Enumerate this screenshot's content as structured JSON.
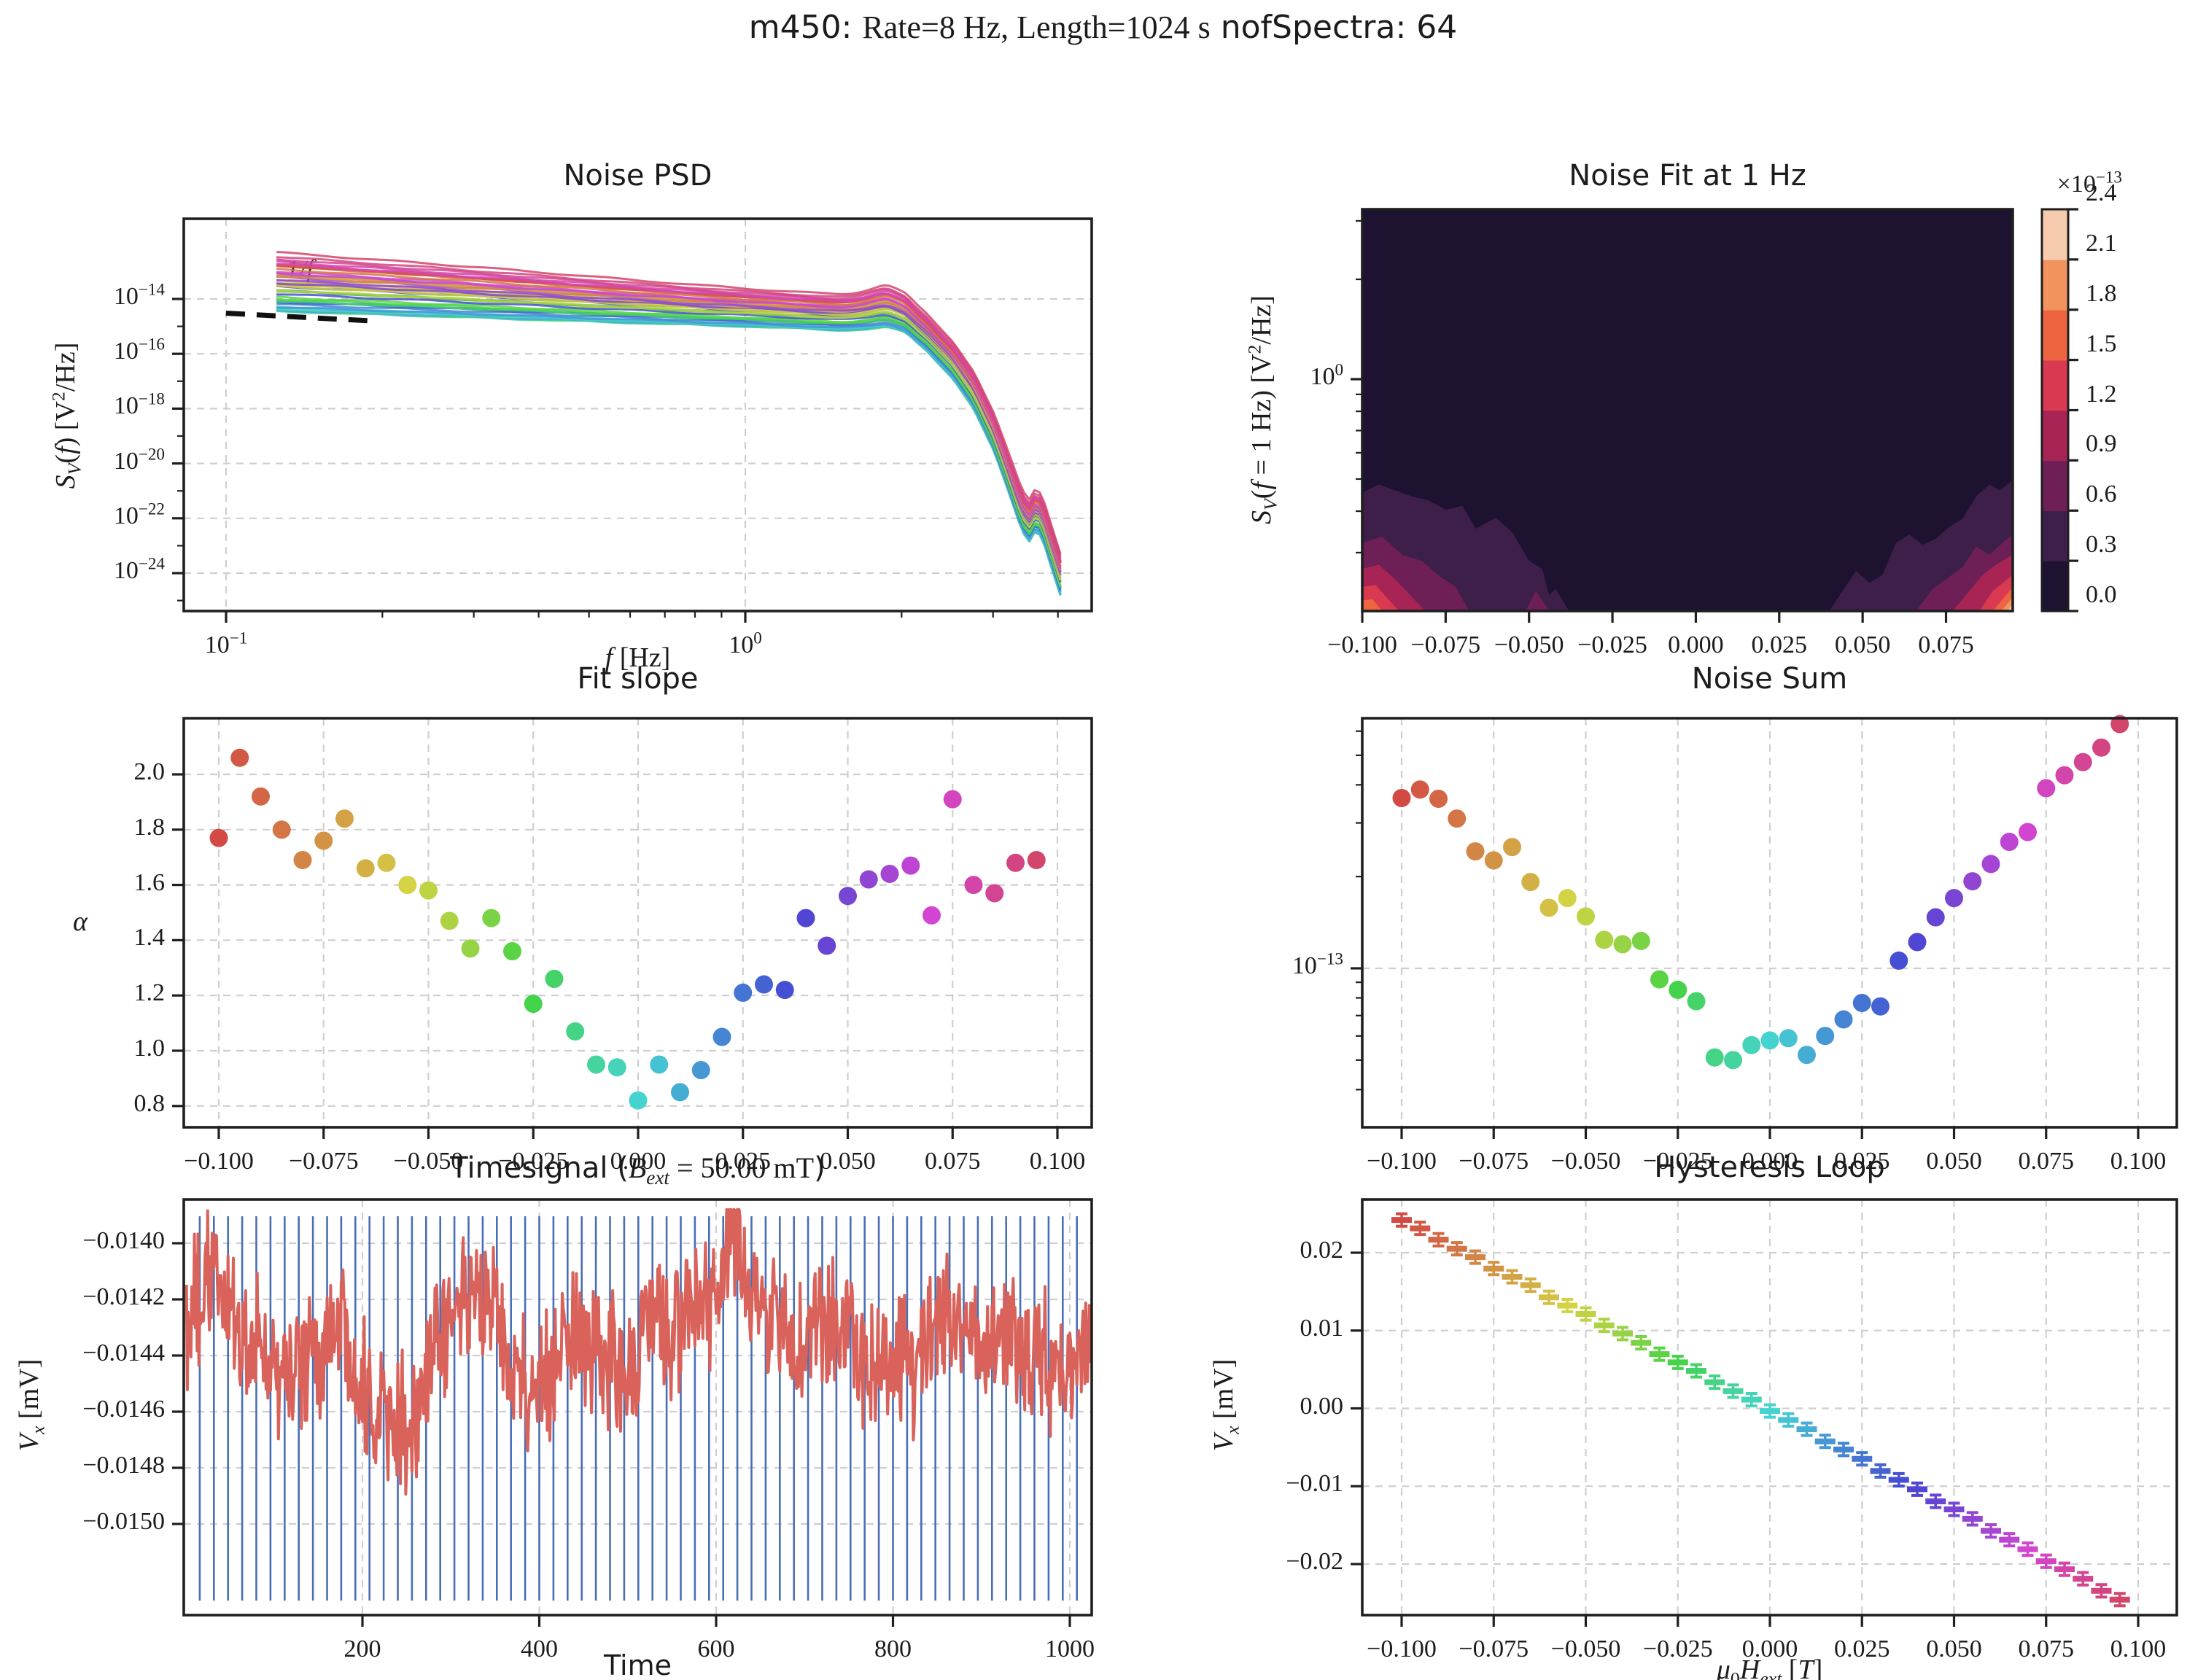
{
  "figure": {
    "suptitle": [
      [
        "m450:  ",
        "s"
      ],
      [
        "Rate",
        "n"
      ],
      [
        "=",
        "n"
      ],
      [
        "8 Hz",
        "n"
      ],
      [
        ", ",
        "n"
      ],
      [
        "Length",
        "n"
      ],
      [
        "=",
        "n"
      ],
      [
        "1024 s",
        "n"
      ],
      [
        "  ",
        "s"
      ],
      [
        "nofSpectra:  64",
        "s"
      ]
    ]
  },
  "style": {
    "spine_color": "#1f1f1f",
    "grid_color": "#cfcfcf",
    "text_color": "#1c1c1c",
    "psd_ref_line_color": "#111111",
    "timesignal_line_color": "#d9625b",
    "segment_line_color": "#4a6fb5",
    "contour_level_colors": [
      "#1d1230",
      "#3e1f4a",
      "#6e2056",
      "#a82455",
      "#d93a51",
      "#ec6440",
      "#f2935e",
      "#f7ccae"
    ],
    "field_hue_anchors": [
      [
        0,
        2
      ],
      [
        0.1,
        26
      ],
      [
        0.2,
        50
      ],
      [
        0.3,
        82
      ],
      [
        0.42,
        140
      ],
      [
        0.5,
        174
      ],
      [
        0.58,
        202
      ],
      [
        0.68,
        232
      ],
      [
        0.78,
        266
      ],
      [
        0.87,
        300
      ],
      [
        1,
        344
      ]
    ],
    "field_saturation": 62,
    "field_lightness": 55
  },
  "field_T": [
    -0.1,
    -0.095,
    -0.09,
    -0.085,
    -0.08,
    -0.075,
    -0.07,
    -0.065,
    -0.06,
    -0.055,
    -0.05,
    -0.045,
    -0.04,
    -0.035,
    -0.03,
    -0.025,
    -0.02,
    -0.015,
    -0.01,
    -0.005,
    0.0,
    0.005,
    0.01,
    0.015,
    0.02,
    0.025,
    0.03,
    0.035,
    0.04,
    0.045,
    0.05,
    0.055,
    0.06,
    0.065,
    0.07,
    0.075,
    0.08,
    0.085,
    0.09,
    0.095
  ],
  "panels": {
    "psd": {
      "title": "Noise PSD",
      "xlabel": [
        [
          "f",
          "i"
        ],
        [
          " [Hz]",
          "n"
        ]
      ],
      "ylabel": [
        [
          "S",
          "i"
        ],
        [
          "V",
          "ui"
        ],
        [
          "(",
          "n"
        ],
        [
          "f",
          "i"
        ],
        [
          ") [V",
          "n"
        ],
        [
          "2",
          "p"
        ],
        [
          "/Hz]",
          "n"
        ]
      ],
      "annotation": "1/f",
      "xtick_exponents": [
        -1,
        0
      ],
      "ytick_exponents": [
        -14,
        -16,
        -18,
        -20,
        -22,
        -24
      ]
    },
    "contour": {
      "title": "Noise Fit at 1 Hz",
      "ylabel": [
        [
          "S",
          "i"
        ],
        [
          "V",
          "ui"
        ],
        [
          "(",
          "n"
        ],
        [
          "f",
          "i"
        ],
        [
          " = 1 Hz) [V",
          "n"
        ],
        [
          "2",
          "p"
        ],
        [
          "/Hz]",
          "n"
        ]
      ],
      "offset_label": [
        [
          "×10",
          "n"
        ],
        [
          "−13",
          "p"
        ]
      ],
      "xticks": [
        "−0.100",
        "−0.075",
        "−0.050",
        "−0.025",
        "0.000",
        "0.025",
        "0.050",
        "0.075"
      ],
      "ytick_exponent": 0,
      "colorbar_ticks": [
        "0.0",
        "0.3",
        "0.6",
        "0.9",
        "1.2",
        "1.5",
        "1.8",
        "2.1",
        "2.4"
      ]
    },
    "fit_slope": {
      "title": "Fit slope",
      "ylabel": [
        [
          "α",
          "i"
        ]
      ],
      "xticks": [
        "−0.100",
        "−0.075",
        "−0.050",
        "−0.025",
        "0.000",
        "0.025",
        "0.050",
        "0.075",
        "0.100"
      ],
      "yticks": [
        "0.8",
        "1.0",
        "1.2",
        "1.4",
        "1.6",
        "1.8",
        "2.0"
      ]
    },
    "noise_sum": {
      "title": "Noise Sum",
      "ytick_exponent": -13,
      "xticks": [
        "−0.100",
        "−0.075",
        "−0.050",
        "−0.025",
        "0.000",
        "0.025",
        "0.050",
        "0.075",
        "0.100"
      ]
    },
    "timesignal": {
      "title": [
        [
          "Timesignal (",
          "s"
        ],
        [
          "B",
          "i"
        ],
        [
          "ext",
          "ui"
        ],
        [
          " = 50.00 mT",
          "n"
        ],
        [
          ")",
          "s"
        ]
      ],
      "xlabel": [
        [
          "Time",
          "s"
        ]
      ],
      "ylabel": [
        [
          "V",
          "i"
        ],
        [
          "x",
          "ui"
        ],
        [
          " [mV]",
          "n"
        ]
      ],
      "xticks": [
        "200",
        "400",
        "600",
        "800",
        "1000"
      ],
      "yticks": [
        "−0.0140",
        "−0.0142",
        "−0.0144",
        "−0.0146",
        "−0.0148",
        "−0.0150"
      ]
    },
    "hysteresis": {
      "title": "Hysteresis Loop",
      "xlabel": [
        [
          "μ",
          "i"
        ],
        [
          "0",
          "u"
        ],
        [
          "H",
          "i"
        ],
        [
          "ext",
          "ui"
        ],
        [
          " [",
          "n"
        ],
        [
          "T",
          "i"
        ],
        [
          "]",
          "n"
        ]
      ],
      "ylabel": [
        [
          "V",
          "i"
        ],
        [
          "x",
          "ui"
        ],
        [
          " [mV]",
          "n"
        ]
      ],
      "xticks": [
        "−0.100",
        "−0.075",
        "−0.050",
        "−0.025",
        "0.000",
        "0.025",
        "0.050",
        "0.075",
        "0.100"
      ],
      "yticks": [
        "0.02",
        "0.01",
        "0.00",
        "−0.01",
        "−0.02"
      ]
    }
  },
  "chart_data": [
    {
      "id": "noise_psd",
      "type": "line",
      "xscale": "log",
      "yscale": "log",
      "title": "Noise PSD",
      "xlabel": "f [Hz]",
      "ylabel": "S_V(f) [V^2/Hz]",
      "n_curves": 40,
      "f_start": 0.125,
      "f_end": 4.05,
      "base_logf": [
        -0.903,
        -0.6,
        -0.3,
        -0.1,
        0,
        0.1,
        0.18,
        0.24,
        0.272,
        0.31,
        0.35,
        0.4,
        0.44,
        0.48,
        0.51,
        0.53,
        0.545,
        0.56,
        0.572,
        0.59,
        0.607
      ],
      "base_logS": [
        -14.45,
        -14.63,
        -14.82,
        -14.94,
        -15.0,
        -15.07,
        -15.14,
        -15.16,
        -15.12,
        -15.3,
        -15.9,
        -16.9,
        -18.0,
        -19.6,
        -21.2,
        -22.3,
        -22.9,
        -22.4,
        -22.7,
        -23.8,
        -24.8
      ],
      "spread_logf": [
        -0.903,
        -0.5,
        -0.2,
        0,
        0.2,
        0.3,
        0.4,
        0.5,
        0.545,
        0.607
      ],
      "spread_w": [
        1.0,
        0.85,
        0.72,
        0.64,
        0.6,
        0.6,
        0.62,
        0.66,
        0.7,
        0.7
      ],
      "amplitude_decades": 2.15,
      "bump": {
        "center_logf": 0.272,
        "sigma": 0.05,
        "amp_base": 0.1,
        "amp_scale": 0.25
      },
      "ref_line": {
        "label": "1/f",
        "f0": 0.1,
        "f1": 0.19,
        "logS0": -14.52,
        "slope": -1
      }
    },
    {
      "id": "noise_fit_1hz",
      "type": "contour-filled",
      "title": "Noise Fit at 1 Hz",
      "xlim": [
        -0.1,
        0.095
      ],
      "ylog_lim": [
        0.2,
        3.25
      ],
      "levels_x1e13": [
        0.0,
        0.3,
        0.6,
        0.9,
        1.2,
        1.5,
        1.8,
        2.1,
        2.4
      ],
      "blobs_left": [
        {
          "level": 1,
          "pts": [
            [
              -0.1,
              0.295
            ],
            [
              -0.095,
              0.315
            ],
            [
              -0.09,
              0.3
            ],
            [
              -0.085,
              0.285
            ],
            [
              -0.08,
              0.275
            ],
            [
              -0.075,
              0.252
            ],
            [
              -0.07,
              0.262
            ],
            [
              -0.066,
              0.205
            ],
            [
              -0.06,
              0.232
            ],
            [
              -0.055,
              0.196
            ],
            [
              -0.05,
              0.125
            ],
            [
              -0.046,
              0.105
            ],
            [
              -0.044,
              0.04
            ],
            [
              -0.042,
              0.055
            ],
            [
              -0.038,
              0.0
            ]
          ]
        },
        {
          "level": 2,
          "pts": [
            [
              -0.1,
              0.17
            ],
            [
              -0.094,
              0.185
            ],
            [
              -0.088,
              0.14
            ],
            [
              -0.082,
              0.124
            ],
            [
              -0.077,
              0.088
            ],
            [
              -0.072,
              0.06
            ],
            [
              -0.068,
              0.0
            ]
          ]
        },
        {
          "level": 2,
          "pts": [
            [
              -0.051,
              0.0
            ],
            [
              -0.048,
              0.05
            ],
            [
              -0.044,
              0.0
            ]
          ]
        },
        {
          "level": 3,
          "pts": [
            [
              -0.1,
              0.105
            ],
            [
              -0.095,
              0.115
            ],
            [
              -0.09,
              0.078
            ],
            [
              -0.085,
              0.034
            ],
            [
              -0.081,
              0.0
            ]
          ]
        },
        {
          "level": 4,
          "pts": [
            [
              -0.1,
              0.06
            ],
            [
              -0.096,
              0.065
            ],
            [
              -0.091,
              0.018
            ],
            [
              -0.089,
              0.0
            ]
          ]
        },
        {
          "level": 5,
          "pts": [
            [
              -0.1,
              0.026
            ],
            [
              -0.097,
              0.03
            ],
            [
              -0.094,
              0.0
            ]
          ]
        }
      ],
      "blobs_right": [
        {
          "level": 1,
          "pts": [
            [
              0.04,
              0.0
            ],
            [
              0.044,
              0.05
            ],
            [
              0.048,
              0.1
            ],
            [
              0.052,
              0.07
            ],
            [
              0.056,
              0.09
            ],
            [
              0.06,
              0.17
            ],
            [
              0.064,
              0.19
            ],
            [
              0.068,
              0.165
            ],
            [
              0.072,
              0.18
            ],
            [
              0.076,
              0.21
            ],
            [
              0.08,
              0.23
            ],
            [
              0.084,
              0.285
            ],
            [
              0.088,
              0.315
            ],
            [
              0.091,
              0.3
            ],
            [
              0.095,
              0.325
            ]
          ]
        },
        {
          "level": 2,
          "pts": [
            [
              0.066,
              0.0
            ],
            [
              0.071,
              0.055
            ],
            [
              0.076,
              0.085
            ],
            [
              0.08,
              0.11
            ],
            [
              0.084,
              0.16
            ],
            [
              0.088,
              0.14
            ],
            [
              0.092,
              0.17
            ],
            [
              0.095,
              0.19
            ]
          ]
        },
        {
          "level": 3,
          "pts": [
            [
              0.077,
              0.0
            ],
            [
              0.082,
              0.05
            ],
            [
              0.086,
              0.09
            ],
            [
              0.09,
              0.115
            ],
            [
              0.095,
              0.14
            ]
          ]
        },
        {
          "level": 4,
          "pts": [
            [
              0.085,
              0.0
            ],
            [
              0.089,
              0.05
            ],
            [
              0.092,
              0.07
            ],
            [
              0.095,
              0.09
            ]
          ]
        },
        {
          "level": 5,
          "pts": [
            [
              0.089,
              0.0
            ],
            [
              0.093,
              0.04
            ],
            [
              0.095,
              0.06
            ]
          ]
        },
        {
          "level": 6,
          "pts": [
            [
              0.0915,
              0.0
            ],
            [
              0.095,
              0.035
            ]
          ]
        },
        {
          "level": 7,
          "pts": [
            [
              0.0935,
              0.0
            ],
            [
              0.095,
              0.018
            ]
          ]
        }
      ]
    },
    {
      "id": "fit_slope",
      "type": "scatter",
      "title": "Fit slope",
      "ylabel": "alpha",
      "x_ref": "field_T",
      "alpha": [
        1.77,
        2.06,
        1.92,
        1.8,
        1.69,
        1.76,
        1.84,
        1.66,
        1.68,
        1.6,
        1.58,
        1.47,
        1.37,
        1.48,
        1.36,
        1.17,
        1.26,
        1.07,
        0.95,
        0.94,
        0.82,
        0.95,
        0.85,
        0.93,
        1.05,
        1.21,
        1.24,
        1.22,
        1.48,
        1.38,
        1.56,
        1.62,
        1.64,
        1.67,
        1.49,
        1.91,
        1.6,
        1.57,
        1.68,
        1.69
      ],
      "ylim": [
        0.72,
        2.21
      ]
    },
    {
      "id": "noise_sum",
      "type": "scatter",
      "yscale": "log",
      "title": "Noise Sum",
      "x_ref": "field_T",
      "sum_x1e13": [
        3.62,
        3.86,
        3.6,
        3.1,
        2.42,
        2.26,
        2.5,
        1.92,
        1.58,
        1.7,
        1.48,
        1.24,
        1.2,
        1.23,
        0.92,
        0.85,
        0.78,
        0.51,
        0.5,
        0.56,
        0.58,
        0.59,
        0.52,
        0.6,
        0.68,
        0.77,
        0.75,
        1.06,
        1.22,
        1.47,
        1.7,
        1.93,
        2.2,
        2.6,
        2.8,
        3.9,
        4.3,
        4.75,
        5.3,
        6.4
      ]
    },
    {
      "id": "timesignal",
      "type": "line",
      "title": "Timesignal (B_ext = 50.00 mT)",
      "xlabel": "Time",
      "ylabel": "V_x [mV]",
      "b_ext_mT": 50.0,
      "n_points": 1024,
      "mean_mV": -0.01442,
      "seed": 1234,
      "ylim": [
        -0.015325,
        -0.013844
      ],
      "ytick_vals": [
        -0.014,
        -0.0142,
        -0.0144,
        -0.0146,
        -0.0148,
        -0.015
      ],
      "xtick_vals": [
        200,
        400,
        600,
        800,
        1000
      ],
      "segments": {
        "count": 63,
        "first_t": 16,
        "step_t": 16,
        "vmin": -0.015273,
        "vmax": -0.013904
      }
    },
    {
      "id": "hysteresis",
      "type": "errorbar",
      "title": "Hysteresis Loop",
      "xlabel": "mu0*H_ext [T]",
      "ylabel": "V_x [mV]",
      "x_ref": "field_T",
      "v_mV": [
        0.0242,
        0.023,
        0.0218,
        0.0205,
        0.0193,
        0.0181,
        0.0169,
        0.0157,
        0.0144,
        0.0132,
        0.012,
        0.0108,
        0.0096,
        0.0083,
        0.0071,
        0.0059,
        0.0047,
        0.0035,
        0.0022,
        0.001,
        -0.0002,
        -0.0015,
        -0.0028,
        -0.0041,
        -0.0053,
        -0.0066,
        -0.0079,
        -0.0092,
        -0.0105,
        -0.0118,
        -0.013,
        -0.0143,
        -0.0156,
        -0.0169,
        -0.0182,
        -0.0195,
        -0.0207,
        -0.022,
        -0.0233,
        -0.0246
      ],
      "err_mV": 0.0008,
      "ytick_vals": [
        0.02,
        0.01,
        0.0,
        -0.01,
        -0.02
      ]
    }
  ]
}
